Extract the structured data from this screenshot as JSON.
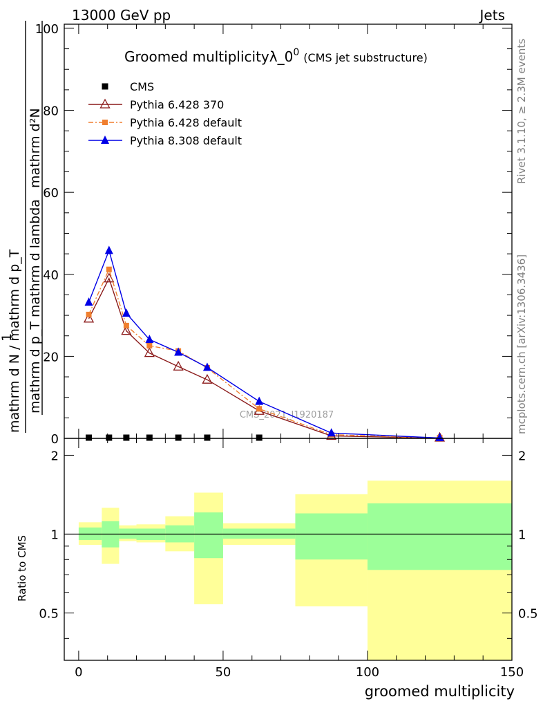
{
  "header": {
    "left": "13000 GeV pp",
    "right": "Jets"
  },
  "side_labels": {
    "rivet": "Rivet 3.1.10, ≥ 2.3M events",
    "mcplots": "mcplots.cern.ch [arXiv:1306.3436]"
  },
  "watermark": "CMS_2021_I1920187",
  "chart_data": [
    {
      "type": "line",
      "title": "Groomed multiplicityλ_0",
      "title_sup": "0",
      "subtitle": "(CMS jet substructure)",
      "ylabel": {
        "numerator": "mathrm d²N",
        "denominator": "mathrm d p_T mathrm d lambda",
        "prefactor_num": "1",
        "prefactor_den": "mathrm d N / mathrm d p_T"
      },
      "xlim": [
        -5,
        150
      ],
      "ylim": [
        0,
        101
      ],
      "yticks": [
        0,
        20,
        40,
        60,
        80,
        100
      ],
      "legend_position": "top-left",
      "series": [
        {
          "name": "CMS",
          "color": "#000000",
          "marker": "square",
          "x": [
            3.5,
            10.5,
            16.5,
            24.5,
            34.5,
            44.5,
            62.5
          ],
          "y": [
            0.05,
            0.05,
            0.05,
            0.05,
            0.05,
            0.05,
            0.05
          ]
        },
        {
          "name": "Pythia 6.428 370",
          "color": "#8b1a1a",
          "marker": "open-triangle",
          "x": [
            3.5,
            10.5,
            16.5,
            24.5,
            34.5,
            44.5,
            62.5,
            87.5,
            125
          ],
          "y": [
            29.2,
            39.0,
            26.2,
            20.8,
            17.5,
            14.3,
            6.7,
            0.6,
            0.05
          ]
        },
        {
          "name": "Pythia 6.428 default",
          "color": "#f07f2f",
          "marker": "square",
          "x": [
            3.5,
            10.5,
            16.5,
            24.5,
            34.5,
            44.5,
            62.5,
            87.5,
            125
          ],
          "y": [
            30.2,
            41.2,
            27.5,
            22.6,
            21.3,
            17.2,
            7.2,
            0.9,
            0.05
          ]
        },
        {
          "name": "Pythia 8.308 default",
          "color": "#0000e6",
          "marker": "triangle",
          "x": [
            3.5,
            10.5,
            16.5,
            24.5,
            34.5,
            44.5,
            62.5,
            87.5,
            125
          ],
          "y": [
            33.2,
            45.8,
            30.5,
            24.1,
            21.0,
            17.3,
            9.0,
            1.3,
            0.08
          ]
        }
      ]
    },
    {
      "type": "area",
      "ylabel": "Ratio to CMS",
      "xlabel": "groomed multiplicity",
      "xlim": [
        -5,
        150
      ],
      "ylim": [
        0.33,
        2.32
      ],
      "yticks": [
        0.5,
        1,
        2
      ],
      "ytick_labels": [
        "0.5",
        "1",
        "2"
      ],
      "xticks": [
        0,
        50,
        100,
        150
      ],
      "reference_line": 1,
      "bands": [
        {
          "x0": 0,
          "x1": 8,
          "stat_lo": 0.95,
          "stat_hi": 1.06,
          "tot_lo": 0.91,
          "tot_hi": 1.11
        },
        {
          "x0": 8,
          "x1": 14,
          "stat_lo": 0.89,
          "stat_hi": 1.12,
          "tot_lo": 0.77,
          "tot_hi": 1.26
        },
        {
          "x0": 14,
          "x1": 20,
          "stat_lo": 0.96,
          "stat_hi": 1.05,
          "tot_lo": 0.94,
          "tot_hi": 1.08
        },
        {
          "x0": 20,
          "x1": 30,
          "stat_lo": 0.95,
          "stat_hi": 1.05,
          "tot_lo": 0.93,
          "tot_hi": 1.09
        },
        {
          "x0": 30,
          "x1": 40,
          "stat_lo": 0.93,
          "stat_hi": 1.08,
          "tot_lo": 0.86,
          "tot_hi": 1.17
        },
        {
          "x0": 40,
          "x1": 50,
          "stat_lo": 0.81,
          "stat_hi": 1.21,
          "tot_lo": 0.54,
          "tot_hi": 1.44
        },
        {
          "x0": 50,
          "x1": 75,
          "stat_lo": 0.96,
          "stat_hi": 1.05,
          "tot_lo": 0.91,
          "tot_hi": 1.1
        },
        {
          "x0": 75,
          "x1": 100,
          "stat_lo": 0.8,
          "stat_hi": 1.2,
          "tot_lo": 0.53,
          "tot_hi": 1.42
        },
        {
          "x0": 100,
          "x1": 150,
          "stat_lo": 0.73,
          "stat_hi": 1.31,
          "tot_lo": 0.33,
          "tot_hi": 1.6
        }
      ],
      "colors": {
        "stat": "#9cff99",
        "total": "#ffff99"
      }
    }
  ]
}
